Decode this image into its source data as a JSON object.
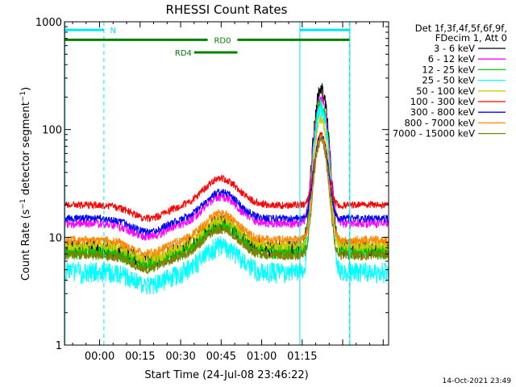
{
  "chart_data": {
    "type": "line",
    "title": "RHESSI Count Rates",
    "xlabel": "Start Time (24-Jul-08 23:46:22)",
    "ylabel": "Count Rate (s",
    "ylabel_sup1": "−1",
    "ylabel_mid": " detector segment",
    "ylabel_sup2": "−1",
    "ylabel_end": ")",
    "x_unit": "minutes since start",
    "x_range_minutes": [
      -13,
      107
    ],
    "y_scale": "log",
    "ylim": [
      1,
      1000
    ],
    "grid": false,
    "x_ticks": [
      {
        "m": 0,
        "label": "00:00"
      },
      {
        "m": 15,
        "label": "00:15"
      },
      {
        "m": 30,
        "label": "00:30"
      },
      {
        "m": 45,
        "label": "00:45"
      },
      {
        "m": 60,
        "label": "01:00"
      },
      {
        "m": 75,
        "label": "01:15"
      }
    ],
    "y_ticks": [
      {
        "v": 1,
        "label": "1"
      },
      {
        "v": 10,
        "label": "10"
      },
      {
        "v": 100,
        "label": "100"
      },
      {
        "v": 1000,
        "label": "1000"
      }
    ],
    "legend": {
      "position": "right",
      "header1": "Det 1f,3f,4f,5f,6f,9f,",
      "header2": "FDecim 1, Att 0"
    },
    "series": [
      {
        "name": "3 - 6 keV",
        "color": "#000000",
        "base": 8.0,
        "peak": 240,
        "amp": 0.12
      },
      {
        "name": "6 - 12 keV",
        "color": "#ff00ff",
        "base": 13.5,
        "peak": 200,
        "amp": 0.06
      },
      {
        "name": "12 - 25 keV",
        "color": "#00cc00",
        "base": 7.4,
        "peak": 175,
        "amp": 0.1
      },
      {
        "name": "25 - 50 keV",
        "color": "#00ffff",
        "base": 4.8,
        "peak": 160,
        "amp": 0.14
      },
      {
        "name": "50 - 100 keV",
        "color": "#cccc00",
        "base": 8.4,
        "peak": 125,
        "amp": 0.07
      },
      {
        "name": "100 - 300 keV",
        "color": "#ff0000",
        "base": 20.0,
        "peak": 90,
        "amp": 0.05
      },
      {
        "name": "300 - 800 keV",
        "color": "#0000ff",
        "base": 15.0,
        "peak": 88,
        "amp": 0.05
      },
      {
        "name": "800 - 7000 keV",
        "color": "#ff8800",
        "base": 9.5,
        "peak": 86,
        "amp": 0.06
      },
      {
        "name": "7000 - 15000 keV",
        "color": "#808000",
        "base": 6.8,
        "peak": 80,
        "amp": 0.06
      }
    ],
    "flare": {
      "center_minutes": 82,
      "width_minutes": 2.7,
      "bump_center_minutes": 45,
      "bump_factor": 1.75
    },
    "night_markers_minutes": [
      1.6,
      92.5
    ],
    "saa_markers_minutes": [
      -13,
      74,
      92.5
    ],
    "att_bars": [
      {
        "label": "N",
        "color": "#00e5ee",
        "y": 840,
        "segments": [
          [
            -13,
            1.6
          ],
          [
            74,
            92.5
          ]
        ],
        "label_at": 5
      },
      {
        "label": "RD0",
        "color": "#008000",
        "y": 680,
        "segments": [
          [
            -13,
            40
          ],
          [
            51,
            92.5
          ]
        ],
        "label_at": 45.5
      },
      {
        "label": "RD4",
        "color": "#008000",
        "y": 520,
        "segments": [
          [
            35,
            51
          ]
        ],
        "label_at": 31
      }
    ]
  },
  "timestamp": "14-Oct-2021 23:49",
  "colors": {
    "axis": "#000000",
    "marker": "#00e5ee"
  }
}
